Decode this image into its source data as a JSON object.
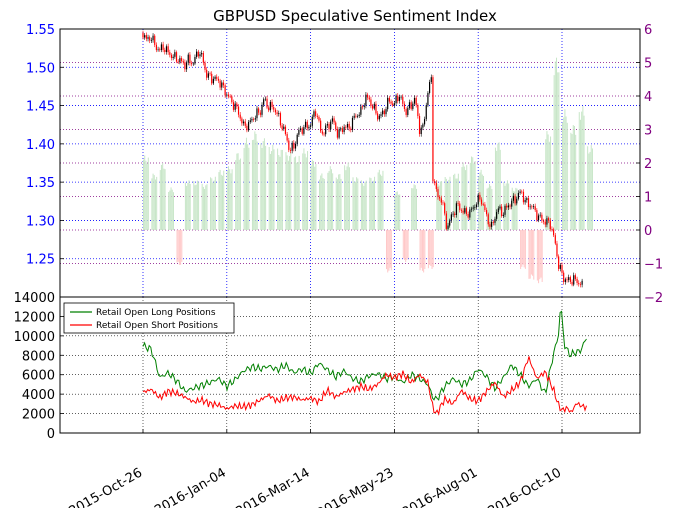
{
  "chart_data": [
    {
      "type": "candlestick",
      "title": "GBPUSD Speculative Sentiment Index",
      "xlabel": "",
      "ylabel": "",
      "ylim": [
        1.2,
        1.55
      ],
      "y_ticks": [
        "1.55",
        "1.50",
        "1.45",
        "1.40",
        "1.35",
        "1.30",
        "1.25"
      ],
      "y_tick_color": "#0000ff",
      "grid": true,
      "price_path": [
        [
          "2015-10-26",
          1.545
        ],
        [
          "2015-10-29",
          1.535
        ],
        [
          "2015-11-02",
          1.54
        ],
        [
          "2015-11-05",
          1.528
        ],
        [
          "2015-11-09",
          1.522
        ],
        [
          "2015-11-12",
          1.527
        ],
        [
          "2015-11-16",
          1.519
        ],
        [
          "2015-11-20",
          1.514
        ],
        [
          "2015-11-25",
          1.51
        ],
        [
          "2015-11-30",
          1.503
        ],
        [
          "2015-12-03",
          1.51
        ],
        [
          "2015-12-07",
          1.505
        ],
        [
          "2015-12-11",
          1.522
        ],
        [
          "2015-12-15",
          1.51
        ],
        [
          "2015-12-18",
          1.49
        ],
        [
          "2015-12-22",
          1.486
        ],
        [
          "2015-12-28",
          1.483
        ],
        [
          "2016-01-04",
          1.465
        ],
        [
          "2016-01-08",
          1.455
        ],
        [
          "2016-01-13",
          1.444
        ],
        [
          "2016-01-18",
          1.423
        ],
        [
          "2016-01-22",
          1.425
        ],
        [
          "2016-01-27",
          1.436
        ],
        [
          "2016-02-01",
          1.443
        ],
        [
          "2016-02-04",
          1.458
        ],
        [
          "2016-02-08",
          1.448
        ],
        [
          "2016-02-12",
          1.448
        ],
        [
          "2016-02-17",
          1.432
        ],
        [
          "2016-02-22",
          1.412
        ],
        [
          "2016-02-26",
          1.39
        ],
        [
          "2016-03-01",
          1.401
        ],
        [
          "2016-03-04",
          1.416
        ],
        [
          "2016-03-09",
          1.422
        ],
        [
          "2016-03-14",
          1.425
        ],
        [
          "2016-03-18",
          1.445
        ],
        [
          "2016-03-23",
          1.413
        ],
        [
          "2016-03-28",
          1.422
        ],
        [
          "2016-04-01",
          1.432
        ],
        [
          "2016-04-06",
          1.412
        ],
        [
          "2016-04-11",
          1.423
        ],
        [
          "2016-04-15",
          1.42
        ],
        [
          "2016-04-20",
          1.436
        ],
        [
          "2016-04-25",
          1.442
        ],
        [
          "2016-04-29",
          1.462
        ],
        [
          "2016-05-04",
          1.452
        ],
        [
          "2016-05-09",
          1.436
        ],
        [
          "2016-05-13",
          1.438
        ],
        [
          "2016-05-18",
          1.456
        ],
        [
          "2016-05-23",
          1.452
        ],
        [
          "2016-05-27",
          1.465
        ],
        [
          "2016-06-01",
          1.442
        ],
        [
          "2016-06-06",
          1.45
        ],
        [
          "2016-06-09",
          1.46
        ],
        [
          "2016-06-13",
          1.42
        ],
        [
          "2016-06-16",
          1.42
        ],
        [
          "2016-06-20",
          1.469
        ],
        [
          "2016-06-23",
          1.485
        ],
        [
          "2016-06-24",
          1.36
        ],
        [
          "2016-06-28",
          1.33
        ],
        [
          "2016-07-01",
          1.33
        ],
        [
          "2016-07-06",
          1.29
        ],
        [
          "2016-07-11",
          1.31
        ],
        [
          "2016-07-15",
          1.32
        ],
        [
          "2016-07-20",
          1.31
        ],
        [
          "2016-07-25",
          1.31
        ],
        [
          "2016-07-29",
          1.32
        ],
        [
          "2016-08-03",
          1.33
        ],
        [
          "2016-08-08",
          1.305
        ],
        [
          "2016-08-12",
          1.29
        ],
        [
          "2016-08-17",
          1.315
        ],
        [
          "2016-08-22",
          1.31
        ],
        [
          "2016-08-26",
          1.32
        ],
        [
          "2016-09-01",
          1.328
        ],
        [
          "2016-09-06",
          1.338
        ],
        [
          "2016-09-09",
          1.325
        ],
        [
          "2016-09-15",
          1.318
        ],
        [
          "2016-09-20",
          1.305
        ],
        [
          "2016-09-26",
          1.298
        ],
        [
          "2016-09-30",
          1.297
        ],
        [
          "2016-10-04",
          1.272
        ],
        [
          "2016-10-07",
          1.243
        ],
        [
          "2016-10-11",
          1.225
        ],
        [
          "2016-10-15",
          1.221
        ],
        [
          "2016-10-20",
          1.223
        ],
        [
          "2016-10-25",
          1.218
        ],
        [
          "2016-10-28",
          1.212
        ]
      ]
    },
    {
      "type": "bar",
      "title": "",
      "ylim": [
        -2,
        6
      ],
      "y_ticks": [
        "6",
        "5",
        "4",
        "3",
        "2",
        "1",
        "0",
        "−1",
        "−2"
      ],
      "y_tick_color": "#800080",
      "positive_color": "#c8e6c8",
      "negative_color": "#ffc8c8",
      "values": [
        [
          "2015-10-26",
          2.1
        ],
        [
          "2015-11-02",
          1.6
        ],
        [
          "2015-11-09",
          1.9
        ],
        [
          "2015-11-16",
          1.2
        ],
        [
          "2015-11-23",
          -1.0
        ],
        [
          "2015-11-30",
          1.4
        ],
        [
          "2015-12-07",
          1.4
        ],
        [
          "2015-12-14",
          1.3
        ],
        [
          "2015-12-21",
          1.5
        ],
        [
          "2015-12-28",
          1.7
        ],
        [
          "2016-01-04",
          1.8
        ],
        [
          "2016-01-11",
          2.2
        ],
        [
          "2016-01-18",
          2.6
        ],
        [
          "2016-01-25",
          2.8
        ],
        [
          "2016-02-01",
          2.6
        ],
        [
          "2016-02-08",
          2.4
        ],
        [
          "2016-02-15",
          2.3
        ],
        [
          "2016-02-22",
          2.2
        ],
        [
          "2016-02-29",
          2.1
        ],
        [
          "2016-03-07",
          2.3
        ],
        [
          "2016-03-14",
          2.0
        ],
        [
          "2016-03-21",
          1.6
        ],
        [
          "2016-03-28",
          1.8
        ],
        [
          "2016-04-04",
          1.6
        ],
        [
          "2016-04-11",
          1.9
        ],
        [
          "2016-04-18",
          1.5
        ],
        [
          "2016-04-25",
          1.4
        ],
        [
          "2016-05-02",
          1.5
        ],
        [
          "2016-05-09",
          1.7
        ],
        [
          "2016-05-16",
          -1.2
        ],
        [
          "2016-05-23",
          1.1
        ],
        [
          "2016-05-30",
          -0.9
        ],
        [
          "2016-06-06",
          1.3
        ],
        [
          "2016-06-13",
          -1.2
        ],
        [
          "2016-06-20",
          -1.1
        ],
        [
          "2016-06-27",
          1.4
        ],
        [
          "2016-07-04",
          1.5
        ],
        [
          "2016-07-11",
          1.6
        ],
        [
          "2016-07-18",
          1.9
        ],
        [
          "2016-07-25",
          2.1
        ],
        [
          "2016-08-01",
          1.7
        ],
        [
          "2016-08-08",
          1.3
        ],
        [
          "2016-08-15",
          2.5
        ],
        [
          "2016-08-22",
          1.4
        ],
        [
          "2016-08-29",
          1.2
        ],
        [
          "2016-09-05",
          -1.1
        ],
        [
          "2016-09-12",
          -1.4
        ],
        [
          "2016-09-19",
          -1.5
        ],
        [
          "2016-09-26",
          2.8
        ],
        [
          "2016-10-03",
          4.9
        ],
        [
          "2016-10-10",
          3.4
        ],
        [
          "2016-10-17",
          3.0
        ],
        [
          "2016-10-24",
          3.5
        ],
        [
          "2016-10-31",
          2.4
        ]
      ]
    },
    {
      "type": "line",
      "title": "",
      "ylim": [
        0,
        14000
      ],
      "y_ticks": [
        "14000",
        "12000",
        "10000",
        "8000",
        "6000",
        "4000",
        "2000",
        "0"
      ],
      "x_ticks": [
        "2015-Oct-26",
        "2016-Jan-04",
        "2016-Mar-14",
        "2016-May-23",
        "2016-Aug-01",
        "2016-Oct-10"
      ],
      "legend_position": "upper-left",
      "series": [
        {
          "name": "Retail Open Long Positions",
          "color": "#008000",
          "points": [
            [
              "2015-10-26",
              9000
            ],
            [
              "2015-11-02",
              8600
            ],
            [
              "2015-11-09",
              5700
            ],
            [
              "2015-11-16",
              6200
            ],
            [
              "2015-11-23",
              5400
            ],
            [
              "2015-11-30",
              4300
            ],
            [
              "2015-12-07",
              4600
            ],
            [
              "2015-12-14",
              4900
            ],
            [
              "2015-12-21",
              5200
            ],
            [
              "2015-12-28",
              5600
            ],
            [
              "2016-01-04",
              4800
            ],
            [
              "2016-01-11",
              5500
            ],
            [
              "2016-01-18",
              6400
            ],
            [
              "2016-01-25",
              6800
            ],
            [
              "2016-02-01",
              6600
            ],
            [
              "2016-02-08",
              6900
            ],
            [
              "2016-02-15",
              6500
            ],
            [
              "2016-02-22",
              7000
            ],
            [
              "2016-02-29",
              6200
            ],
            [
              "2016-03-07",
              6600
            ],
            [
              "2016-03-14",
              6100
            ],
            [
              "2016-03-21",
              7200
            ],
            [
              "2016-03-28",
              6500
            ],
            [
              "2016-04-04",
              5800
            ],
            [
              "2016-04-11",
              6400
            ],
            [
              "2016-04-18",
              5600
            ],
            [
              "2016-04-25",
              5300
            ],
            [
              "2016-05-02",
              5900
            ],
            [
              "2016-05-09",
              6100
            ],
            [
              "2016-05-16",
              5600
            ],
            [
              "2016-05-23",
              5800
            ],
            [
              "2016-05-30",
              5200
            ],
            [
              "2016-06-06",
              6000
            ],
            [
              "2016-06-13",
              5600
            ],
            [
              "2016-06-20",
              5000
            ],
            [
              "2016-06-24",
              3700
            ],
            [
              "2016-06-27",
              3400
            ],
            [
              "2016-07-04",
              4800
            ],
            [
              "2016-07-11",
              5600
            ],
            [
              "2016-07-18",
              5000
            ],
            [
              "2016-07-25",
              5400
            ],
            [
              "2016-08-01",
              6600
            ],
            [
              "2016-08-08",
              5800
            ],
            [
              "2016-08-15",
              4600
            ],
            [
              "2016-08-22",
              5700
            ],
            [
              "2016-08-29",
              7000
            ],
            [
              "2016-09-05",
              6000
            ],
            [
              "2016-09-12",
              4800
            ],
            [
              "2016-09-19",
              5600
            ],
            [
              "2016-09-26",
              4000
            ],
            [
              "2016-10-03",
              8200
            ],
            [
              "2016-10-07",
              10000
            ],
            [
              "2016-10-09",
              13400
            ],
            [
              "2016-10-12",
              9000
            ],
            [
              "2016-10-17",
              8000
            ],
            [
              "2016-10-21",
              8300
            ],
            [
              "2016-10-25",
              8400
            ],
            [
              "2016-10-31",
              9900
            ]
          ]
        },
        {
          "name": "Retail Open Short Positions",
          "color": "#ff0000",
          "points": [
            [
              "2015-10-26",
              4200
            ],
            [
              "2015-11-02",
              4500
            ],
            [
              "2015-11-09",
              3600
            ],
            [
              "2015-11-16",
              4300
            ],
            [
              "2015-11-23",
              4100
            ],
            [
              "2015-11-30",
              3700
            ],
            [
              "2015-12-07",
              3200
            ],
            [
              "2015-12-14",
              3400
            ],
            [
              "2015-12-21",
              3000
            ],
            [
              "2015-12-28",
              2900
            ],
            [
              "2016-01-04",
              2500
            ],
            [
              "2016-01-11",
              2800
            ],
            [
              "2016-01-18",
              2700
            ],
            [
              "2016-01-25",
              2900
            ],
            [
              "2016-02-01",
              3400
            ],
            [
              "2016-02-08",
              3900
            ],
            [
              "2016-02-15",
              3300
            ],
            [
              "2016-02-22",
              3600
            ],
            [
              "2016-02-29",
              3700
            ],
            [
              "2016-03-07",
              3400
            ],
            [
              "2016-03-14",
              3600
            ],
            [
              "2016-03-21",
              3200
            ],
            [
              "2016-03-28",
              4400
            ],
            [
              "2016-04-04",
              3700
            ],
            [
              "2016-04-11",
              4200
            ],
            [
              "2016-04-18",
              4500
            ],
            [
              "2016-04-25",
              4800
            ],
            [
              "2016-05-02",
              4500
            ],
            [
              "2016-05-09",
              5000
            ],
            [
              "2016-05-16",
              6000
            ],
            [
              "2016-05-23",
              5700
            ],
            [
              "2016-05-30",
              6100
            ],
            [
              "2016-06-06",
              5200
            ],
            [
              "2016-06-13",
              6000
            ],
            [
              "2016-06-20",
              5200
            ],
            [
              "2016-06-24",
              2700
            ],
            [
              "2016-06-27",
              1900
            ],
            [
              "2016-07-04",
              3500
            ],
            [
              "2016-07-11",
              3000
            ],
            [
              "2016-07-18",
              4400
            ],
            [
              "2016-07-25",
              3500
            ],
            [
              "2016-08-01",
              3300
            ],
            [
              "2016-08-08",
              4300
            ],
            [
              "2016-08-15",
              5200
            ],
            [
              "2016-08-22",
              3700
            ],
            [
              "2016-08-29",
              4400
            ],
            [
              "2016-09-05",
              5200
            ],
            [
              "2016-09-12",
              7800
            ],
            [
              "2016-09-19",
              5600
            ],
            [
              "2016-09-26",
              6300
            ],
            [
              "2016-10-03",
              4400
            ],
            [
              "2016-10-07",
              2900
            ],
            [
              "2016-10-10",
              2300
            ],
            [
              "2016-10-14",
              2600
            ],
            [
              "2016-10-18",
              2100
            ],
            [
              "2016-10-22",
              3100
            ],
            [
              "2016-10-26",
              2800
            ],
            [
              "2016-10-31",
              2600
            ]
          ]
        }
      ]
    }
  ]
}
